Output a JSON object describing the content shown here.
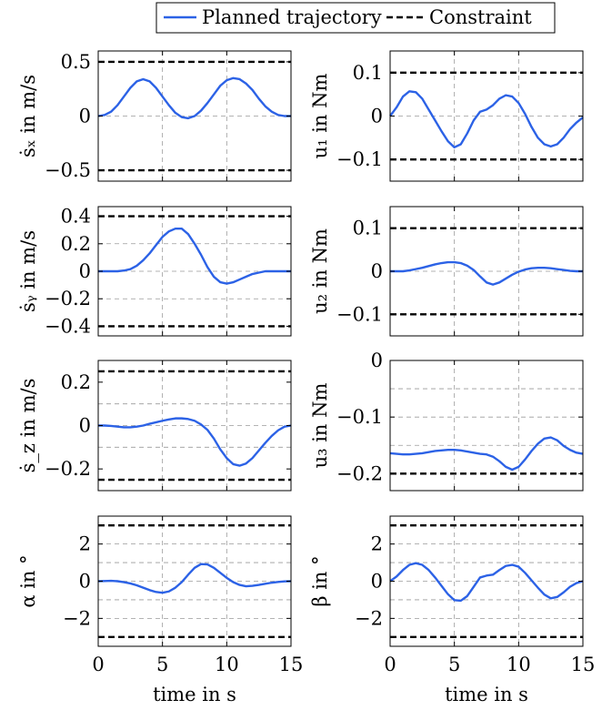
{
  "legend": {
    "items": [
      {
        "label": "Planned trajectory",
        "style": "solid",
        "color": "#2c62e6"
      },
      {
        "label": "Constraint",
        "style": "dashed",
        "color": "#000000"
      }
    ]
  },
  "colors": {
    "trajectory": "#2c62e6",
    "constraint": "#000000",
    "grid": "#9a9a9a"
  },
  "x_axis": {
    "ticks": [
      0,
      5,
      10,
      15
    ],
    "tick_labels": [
      "0",
      "5",
      "10",
      "15"
    ],
    "xlabel": "time in s",
    "xlim": [
      0,
      15
    ]
  },
  "chart_data": [
    {
      "type": "line",
      "ylabel": "ṡₓ in m/s",
      "ylim": [
        -0.6,
        0.6
      ],
      "yticks": [
        -0.5,
        0,
        0.5
      ],
      "ytick_labels": [
        "−0.5",
        "0",
        "0.5"
      ],
      "ygrid": [
        0
      ],
      "constraints": [
        0.5,
        -0.5
      ],
      "series": [
        {
          "name": "Planned trajectory",
          "x": [
            0,
            0.5,
            1,
            1.5,
            2,
            2.5,
            3,
            3.5,
            4,
            4.5,
            5,
            5.5,
            6,
            6.5,
            7,
            7.5,
            8,
            8.5,
            9,
            9.5,
            10,
            10.5,
            11,
            11.5,
            12,
            12.5,
            13,
            13.5,
            14,
            14.5,
            15
          ],
          "y": [
            0,
            0.01,
            0.04,
            0.1,
            0.18,
            0.26,
            0.32,
            0.34,
            0.32,
            0.26,
            0.18,
            0.1,
            0.03,
            -0.01,
            -0.02,
            0,
            0.05,
            0.12,
            0.2,
            0.28,
            0.33,
            0.35,
            0.34,
            0.3,
            0.24,
            0.16,
            0.09,
            0.04,
            0.01,
            0,
            0
          ]
        }
      ]
    },
    {
      "type": "line",
      "ylabel": "u₁ in Nm",
      "ylim": [
        -0.15,
        0.15
      ],
      "yticks": [
        -0.1,
        0,
        0.1
      ],
      "ytick_labels": [
        "−0.1",
        "0",
        "0.1"
      ],
      "ygrid": [
        0
      ],
      "constraints": [
        0.1,
        -0.1
      ],
      "series": [
        {
          "name": "Planned trajectory",
          "x": [
            0,
            0.5,
            1,
            1.5,
            2,
            2.5,
            3,
            3.5,
            4,
            4.5,
            5,
            5.5,
            6,
            6.5,
            7,
            7.5,
            8,
            8.5,
            9,
            9.5,
            10,
            10.5,
            11,
            11.5,
            12,
            12.5,
            13,
            13.5,
            14,
            14.5,
            15
          ],
          "y": [
            0,
            0.02,
            0.045,
            0.057,
            0.055,
            0.04,
            0.015,
            -0.01,
            -0.035,
            -0.058,
            -0.072,
            -0.065,
            -0.04,
            -0.01,
            0.01,
            0.015,
            0.025,
            0.04,
            0.048,
            0.045,
            0.03,
            0.005,
            -0.025,
            -0.05,
            -0.065,
            -0.07,
            -0.065,
            -0.05,
            -0.03,
            -0.015,
            -0.003
          ]
        }
      ]
    },
    {
      "type": "line",
      "ylabel": "ṡᵧ in m/s",
      "ylim": [
        -0.47,
        0.47
      ],
      "yticks": [
        -0.4,
        -0.2,
        0,
        0.2,
        0.4
      ],
      "ytick_labels": [
        "−0.4",
        "−0.2",
        "0",
        "0.2",
        "0.4"
      ],
      "ygrid": [
        -0.2,
        0,
        0.2
      ],
      "constraints": [
        0.4,
        -0.4
      ],
      "series": [
        {
          "name": "Planned trajectory",
          "x": [
            0,
            0.5,
            1,
            1.5,
            2,
            2.5,
            3,
            3.5,
            4,
            4.5,
            5,
            5.5,
            6,
            6.5,
            7,
            7.5,
            8,
            8.5,
            9,
            9.5,
            10,
            10.5,
            11,
            11.5,
            12,
            12.5,
            13,
            13.5,
            14,
            14.5,
            15
          ],
          "y": [
            0,
            0,
            0,
            0,
            0.005,
            0.015,
            0.04,
            0.08,
            0.13,
            0.19,
            0.25,
            0.29,
            0.31,
            0.31,
            0.27,
            0.2,
            0.12,
            0.03,
            -0.04,
            -0.08,
            -0.09,
            -0.08,
            -0.06,
            -0.04,
            -0.02,
            -0.01,
            0,
            0,
            0,
            0,
            0
          ]
        }
      ]
    },
    {
      "type": "line",
      "ylabel": "u₂ in Nm",
      "ylim": [
        -0.15,
        0.15
      ],
      "yticks": [
        -0.1,
        0,
        0.1
      ],
      "ytick_labels": [
        "−0.1",
        "0",
        "0.1"
      ],
      "ygrid": [
        0
      ],
      "constraints": [
        0.1,
        -0.1
      ],
      "series": [
        {
          "name": "Planned trajectory",
          "x": [
            0,
            0.5,
            1,
            1.5,
            2,
            2.5,
            3,
            3.5,
            4,
            4.5,
            5,
            5.5,
            6,
            6.5,
            7,
            7.5,
            8,
            8.5,
            9,
            9.5,
            10,
            10.5,
            11,
            11.5,
            12,
            12.5,
            13,
            13.5,
            14,
            14.5,
            15
          ],
          "y": [
            0,
            0,
            0,
            0.002,
            0.005,
            0.008,
            0.012,
            0.016,
            0.019,
            0.021,
            0.021,
            0.019,
            0.013,
            0.003,
            -0.012,
            -0.026,
            -0.031,
            -0.026,
            -0.017,
            -0.008,
            -0.001,
            0.004,
            0.007,
            0.008,
            0.008,
            0.007,
            0.005,
            0.003,
            0.001,
            0,
            0
          ]
        }
      ]
    },
    {
      "type": "line",
      "ylabel": "ṡ_z in m/s",
      "ylim": [
        -0.3,
        0.3
      ],
      "yticks": [
        -0.2,
        0,
        0.2
      ],
      "ytick_labels": [
        "−0.2",
        "0",
        "0.2"
      ],
      "ygrid": [
        -0.1,
        0,
        0.1
      ],
      "constraints": [
        0.25,
        -0.25
      ],
      "series": [
        {
          "name": "Planned trajectory",
          "x": [
            0,
            0.5,
            1,
            1.5,
            2,
            2.5,
            3,
            3.5,
            4,
            4.5,
            5,
            5.5,
            6,
            6.5,
            7,
            7.5,
            8,
            8.5,
            9,
            9.5,
            10,
            10.5,
            11,
            11.5,
            12,
            12.5,
            13,
            13.5,
            14,
            14.5,
            15
          ],
          "y": [
            0,
            0,
            -0.002,
            -0.005,
            -0.008,
            -0.008,
            -0.005,
            0,
            0.008,
            0.015,
            0.022,
            0.028,
            0.033,
            0.033,
            0.03,
            0.022,
            0.005,
            -0.02,
            -0.06,
            -0.11,
            -0.15,
            -0.178,
            -0.185,
            -0.175,
            -0.15,
            -0.115,
            -0.08,
            -0.048,
            -0.022,
            -0.005,
            0
          ]
        }
      ]
    },
    {
      "type": "line",
      "ylabel": "u₃ in Nm",
      "ylim": [
        -0.23,
        0
      ],
      "yticks": [
        -0.2,
        -0.1,
        0
      ],
      "ytick_labels": [
        "−0.2",
        "−0.1",
        "0"
      ],
      "ygrid": [
        -0.15,
        -0.1,
        -0.05
      ],
      "constraints": [
        -0.2
      ],
      "series": [
        {
          "name": "Planned trajectory",
          "x": [
            0,
            0.5,
            1,
            1.5,
            2,
            2.5,
            3,
            3.5,
            4,
            4.5,
            5,
            5.5,
            6,
            6.5,
            7,
            7.5,
            8,
            8.5,
            9,
            9.5,
            10,
            10.5,
            11,
            11.5,
            12,
            12.5,
            13,
            13.5,
            14,
            14.5,
            15
          ],
          "y": [
            -0.164,
            -0.165,
            -0.166,
            -0.166,
            -0.165,
            -0.164,
            -0.162,
            -0.16,
            -0.159,
            -0.158,
            -0.158,
            -0.159,
            -0.161,
            -0.163,
            -0.165,
            -0.166,
            -0.17,
            -0.178,
            -0.188,
            -0.193,
            -0.188,
            -0.175,
            -0.16,
            -0.147,
            -0.138,
            -0.136,
            -0.141,
            -0.151,
            -0.158,
            -0.163,
            -0.165
          ]
        }
      ]
    },
    {
      "type": "line",
      "ylabel": "α in °",
      "ylim": [
        -3.5,
        3.5
      ],
      "yticks": [
        -2,
        0,
        2
      ],
      "ytick_labels": [
        "−2",
        "0",
        "2"
      ],
      "ygrid": [
        -2,
        -1,
        0,
        1,
        2
      ],
      "constraints": [
        3,
        -3
      ],
      "series": [
        {
          "name": "Planned trajectory",
          "x": [
            0,
            0.5,
            1,
            1.5,
            2,
            2.5,
            3,
            3.5,
            4,
            4.5,
            5,
            5.5,
            6,
            6.5,
            7,
            7.5,
            8,
            8.5,
            9,
            9.5,
            10,
            10.5,
            11,
            11.5,
            12,
            12.5,
            13,
            13.5,
            14,
            14.5,
            15
          ],
          "y": [
            0,
            0.01,
            0.02,
            0,
            -0.05,
            -0.12,
            -0.22,
            -0.35,
            -0.48,
            -0.58,
            -0.62,
            -0.55,
            -0.35,
            -0.05,
            0.35,
            0.72,
            0.92,
            0.9,
            0.72,
            0.45,
            0.18,
            -0.05,
            -0.2,
            -0.27,
            -0.25,
            -0.2,
            -0.14,
            -0.08,
            -0.04,
            -0.01,
            0
          ]
        }
      ]
    },
    {
      "type": "line",
      "ylabel": "β in °",
      "ylim": [
        -3.5,
        3.5
      ],
      "yticks": [
        -2,
        0,
        2
      ],
      "ytick_labels": [
        "−2",
        "0",
        "2"
      ],
      "ygrid": [
        -2,
        -1,
        0,
        1,
        2
      ],
      "constraints": [
        3,
        -3
      ],
      "series": [
        {
          "name": "Planned trajectory",
          "x": [
            0,
            0.5,
            1,
            1.5,
            2,
            2.5,
            3,
            3.5,
            4,
            4.5,
            5,
            5.5,
            6,
            6.5,
            7,
            7.5,
            8,
            8.5,
            9,
            9.5,
            10,
            10.5,
            11,
            11.5,
            12,
            12.5,
            13,
            13.5,
            14,
            14.5,
            15
          ],
          "y": [
            0,
            0.25,
            0.6,
            0.88,
            0.97,
            0.88,
            0.6,
            0.2,
            -0.25,
            -0.7,
            -1.02,
            -1.05,
            -0.8,
            -0.3,
            0.2,
            0.3,
            0.35,
            0.6,
            0.82,
            0.88,
            0.78,
            0.45,
            0.05,
            -0.35,
            -0.72,
            -0.92,
            -0.85,
            -0.6,
            -0.3,
            -0.1,
            0
          ]
        }
      ]
    }
  ]
}
